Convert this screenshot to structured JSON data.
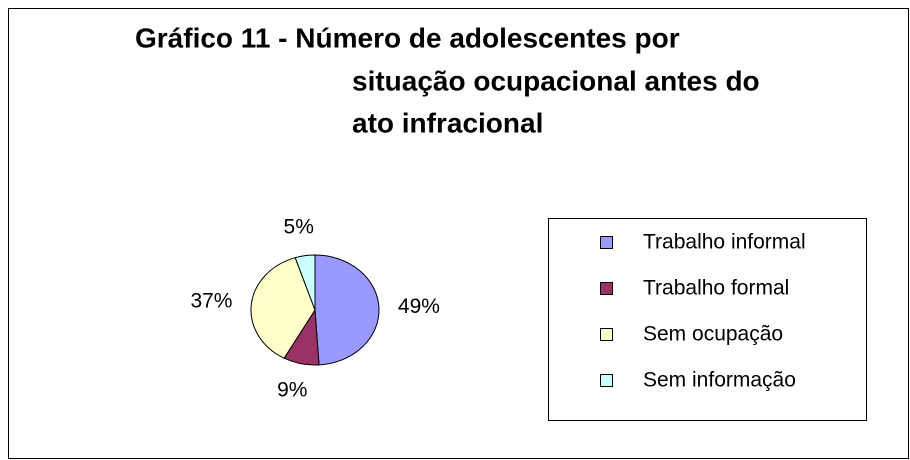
{
  "chart_data": {
    "type": "pie",
    "title": [
      "Gráfico 11 - Número de adolescentes por",
      "situação ocupacional antes do",
      "ato infracional"
    ],
    "categories": [
      "Trabalho informal",
      "Trabalho formal",
      "Sem ocupação",
      "Sem informação"
    ],
    "values": [
      49,
      9,
      37,
      5
    ],
    "value_labels": [
      "49%",
      "9%",
      "37%",
      "5%"
    ],
    "colors": [
      "#9999ff",
      "#993366",
      "#ffffcc",
      "#ccffff"
    ],
    "legend": "right"
  }
}
